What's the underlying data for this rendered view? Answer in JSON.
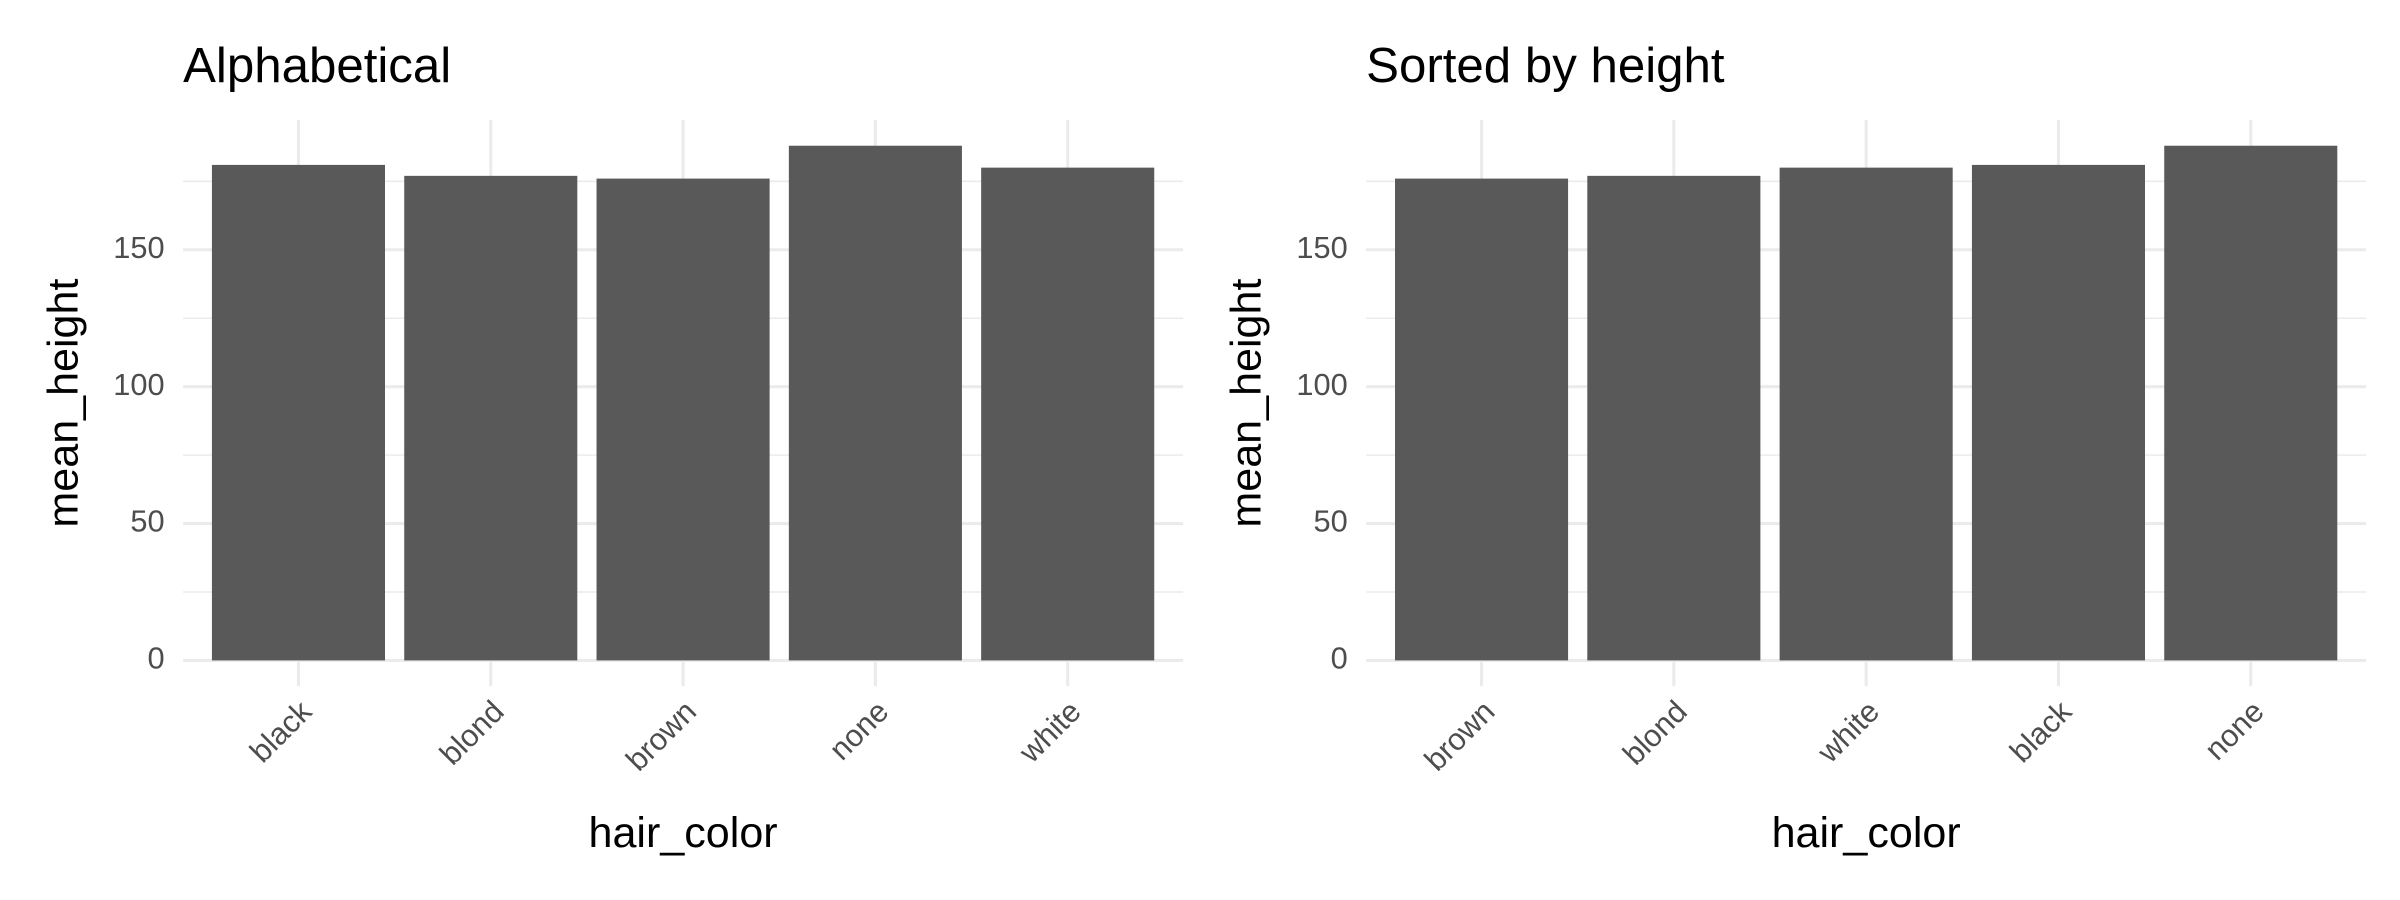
{
  "chart_data": [
    {
      "type": "bar",
      "title": "Alphabetical",
      "x_label": "hair_color",
      "y_label": "mean_height",
      "categories": [
        "black",
        "blond",
        "brown",
        "none",
        "white"
      ],
      "values": [
        181,
        177,
        176,
        188,
        180
      ],
      "color": "#595959",
      "ylim": [
        -9.4,
        197.4
      ],
      "yticks": [
        0,
        50,
        100,
        150
      ],
      "grid": true
    },
    {
      "type": "bar",
      "title": "Sorted by height",
      "x_label": "hair_color",
      "y_label": "mean_height",
      "categories": [
        "brown",
        "blond",
        "white",
        "black",
        "none"
      ],
      "values": [
        176,
        177,
        180,
        181,
        188
      ],
      "color": "#595959",
      "ylim": [
        -9.4,
        197.4
      ],
      "yticks": [
        0,
        50,
        100,
        150
      ],
      "grid": true
    }
  ]
}
